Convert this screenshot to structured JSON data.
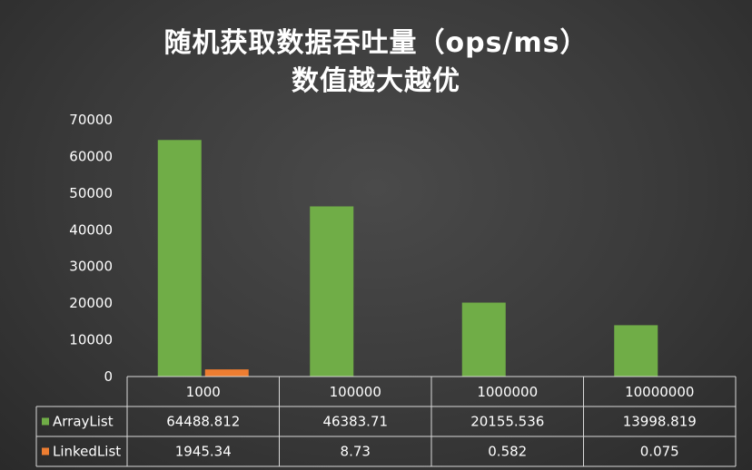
{
  "chart_data": {
    "type": "bar",
    "title_lines": [
      "随机获取数据吞吐量（ops/ms）",
      "数值越大越优"
    ],
    "categories": [
      "1000",
      "100000",
      "1000000",
      "10000000"
    ],
    "series": [
      {
        "name": "ArrayList",
        "color": "#70ad47",
        "values": [
          64488.812,
          46383.71,
          20155.536,
          13998.819
        ],
        "labels": [
          "64488.812",
          "46383.71",
          "20155.536",
          "13998.819"
        ]
      },
      {
        "name": "LinkedList",
        "color": "#ed7d31",
        "values": [
          1945.34,
          8.73,
          0.582,
          0.075
        ],
        "labels": [
          "1945.34",
          "8.73",
          "0.582",
          "0.075"
        ]
      }
    ],
    "yticks": [
      "0",
      "10000",
      "20000",
      "30000",
      "40000",
      "50000",
      "60000",
      "70000"
    ],
    "ylim": [
      0,
      70000
    ],
    "grid": false,
    "data_table": true,
    "legend": "data-table"
  }
}
